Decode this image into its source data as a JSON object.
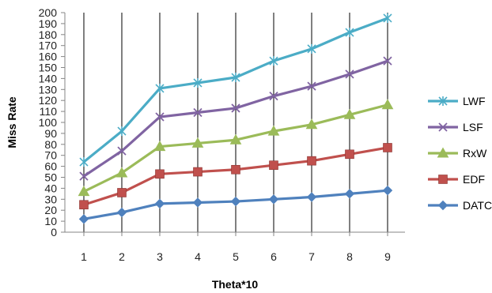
{
  "chart_data": {
    "type": "line",
    "xlabel": "Theta*10",
    "ylabel": "Miss Rate",
    "categories": [
      "1",
      "2",
      "3",
      "4",
      "5",
      "6",
      "7",
      "8",
      "9"
    ],
    "ylim": [
      0,
      200
    ],
    "ytick_step": 10,
    "grid": "vertical",
    "legend_position": "right",
    "series": [
      {
        "name": "LWF",
        "color": "#4BACC6",
        "marker": "star",
        "values": [
          64,
          92,
          131,
          136,
          141,
          156,
          167,
          182,
          195
        ]
      },
      {
        "name": "LSF",
        "color": "#8064A2",
        "marker": "x",
        "values": [
          51,
          74,
          105,
          109,
          113,
          124,
          133,
          144,
          156
        ]
      },
      {
        "name": "RxW",
        "color": "#9BBB59",
        "marker": "triangle",
        "values": [
          37,
          54,
          78,
          81,
          84,
          92,
          98,
          107,
          116
        ]
      },
      {
        "name": "EDF",
        "color": "#C0504D",
        "marker": "square",
        "values": [
          25,
          36,
          53,
          55,
          57,
          61,
          65,
          71,
          77
        ]
      },
      {
        "name": "DATC",
        "color": "#4F81BD",
        "marker": "diamond",
        "values": [
          12,
          18,
          26,
          27,
          28,
          30,
          32,
          35,
          38
        ]
      }
    ]
  }
}
